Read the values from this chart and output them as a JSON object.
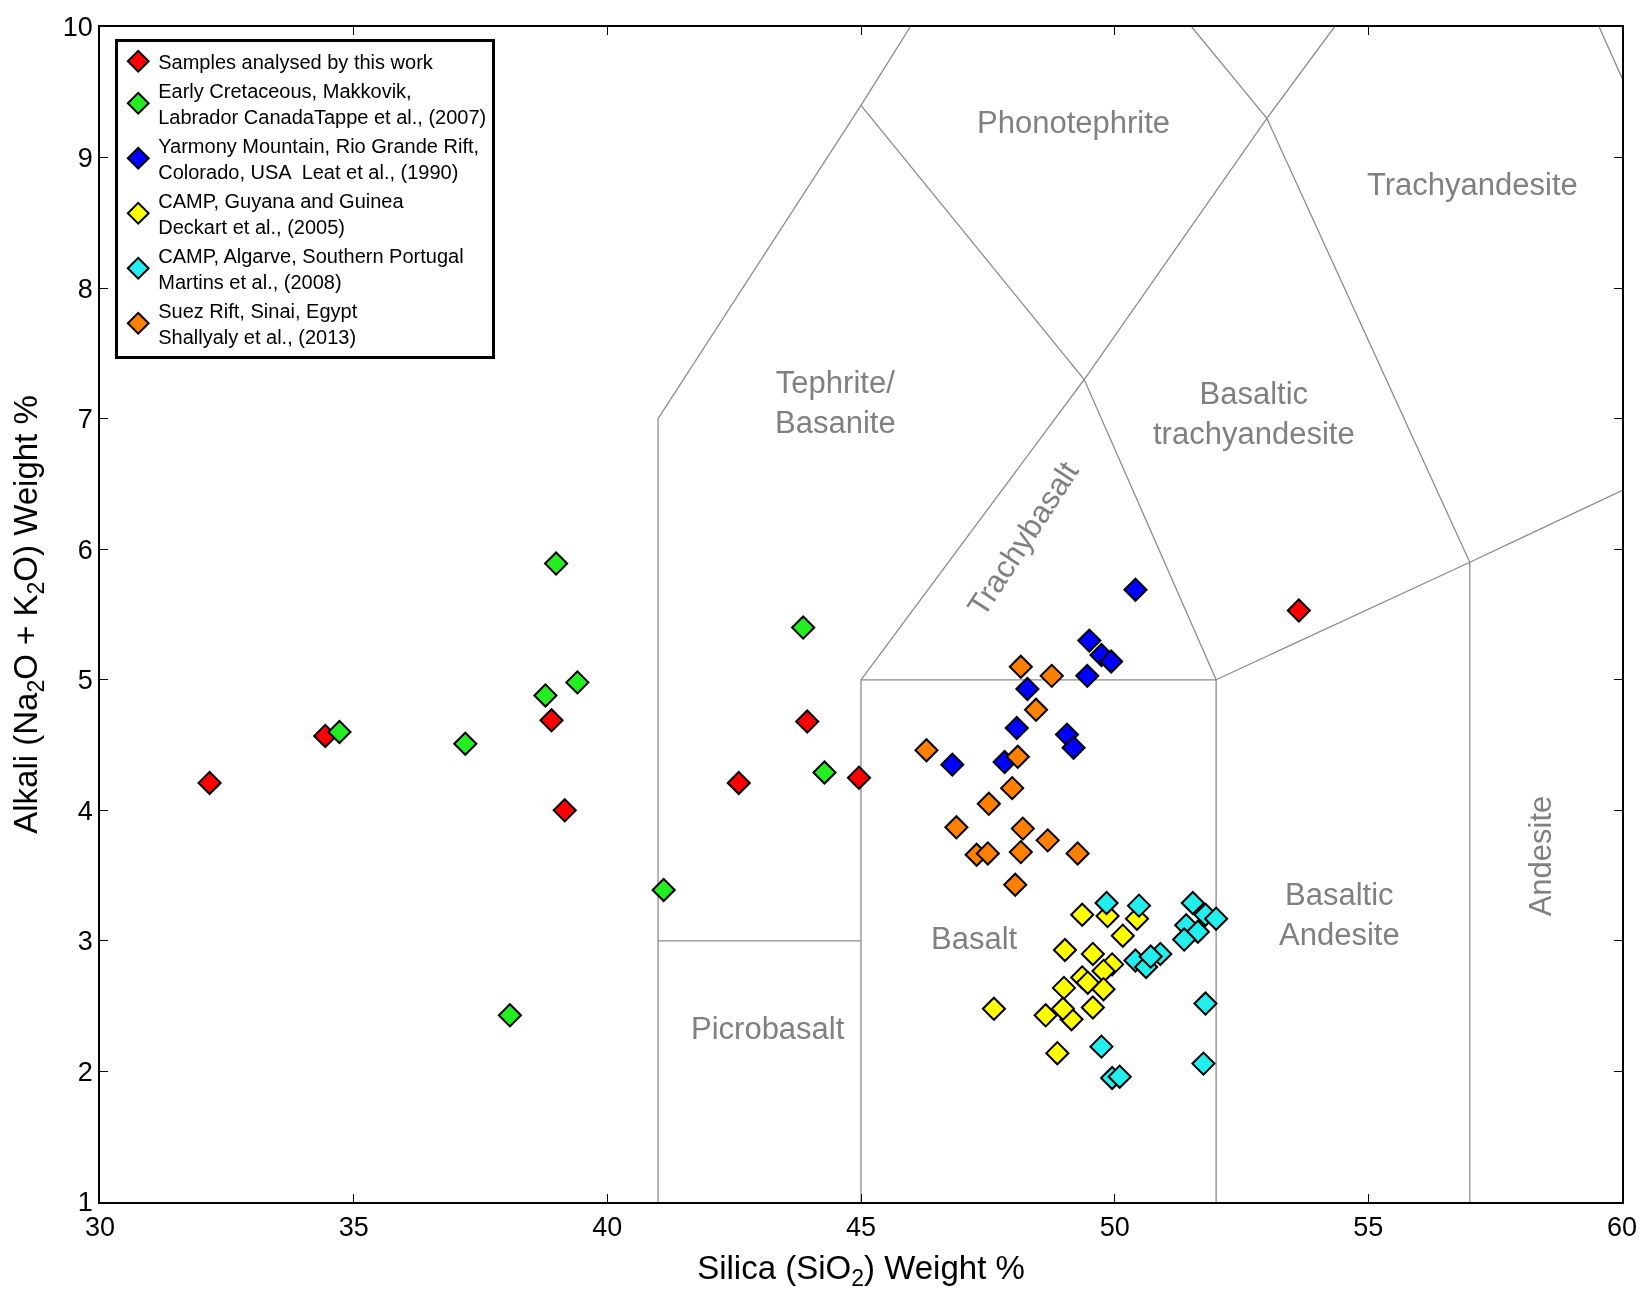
{
  "chart_data": {
    "type": "scatter",
    "xlabel": "Silica (SiO$_{2}$) Weight %",
    "ylabel": "Alkali (Na$_{2}$O + K$_{2}$O) Weight %",
    "xlim": [
      30,
      60
    ],
    "xticks": [
      30,
      35,
      40,
      45,
      50,
      55,
      60
    ],
    "ylim": [
      1,
      10
    ],
    "yticks": [
      1,
      2,
      3,
      4,
      5,
      6,
      7,
      8,
      9,
      10
    ],
    "legend": "top left",
    "marker": "diamond",
    "series": [
      {
        "type": "line",
        "color": "#8c8c8c",
        "marker": "none",
        "x": [
          41,
          41,
          45,
          45.97
        ],
        "values": [
          1,
          7,
          9.4,
          10
        ]
      },
      {
        "type": "line",
        "color": "#8c8c8c",
        "marker": "none",
        "x": [
          41,
          45
        ],
        "values": [
          3,
          3
        ]
      },
      {
        "type": "line",
        "color": "#8c8c8c",
        "marker": "none",
        "x": [
          45,
          45,
          52,
          52
        ],
        "values": [
          1,
          5,
          5,
          1
        ]
      },
      {
        "type": "line",
        "color": "#8c8c8c",
        "marker": "none",
        "x": [
          45,
          49.4,
          53,
          54.33
        ],
        "values": [
          5,
          7.3,
          9.3,
          10
        ]
      },
      {
        "type": "line",
        "color": "#8c8c8c",
        "marker": "none",
        "x": [
          45,
          49.4,
          52
        ],
        "values": [
          9.4,
          7.3,
          5
        ]
      },
      {
        "type": "line",
        "color": "#8c8c8c",
        "marker": "none",
        "x": [
          51.52,
          53,
          57,
          57
        ],
        "values": [
          10,
          9.3,
          5.9,
          1
        ]
      },
      {
        "type": "line",
        "color": "#8c8c8c",
        "marker": "none",
        "x": [
          52,
          57,
          60
        ],
        "values": [
          5,
          5.9,
          6.45
        ]
      },
      {
        "type": "line",
        "color": "#8c8c8c",
        "marker": "none",
        "x": [
          59.55,
          60
        ],
        "values": [
          10,
          9.61
        ]
      },
      {
        "name": "Samples analysed by this work",
        "color": "#ff0000",
        "x": [
          32.16,
          34.44,
          38.9,
          39.16,
          42.59,
          43.94,
          44.96,
          53.63
        ],
        "values": [
          4.21,
          4.57,
          4.69,
          4.0,
          4.21,
          4.68,
          4.25,
          5.53
        ]
      },
      {
        "name": "Early Cretaceous, Makkovik,\nLabrador CanadaTappe et al., (2007)",
        "color": "#22ee22",
        "x": [
          34.72,
          37.2,
          38.99,
          38.78,
          39.41,
          38.08,
          43.86,
          44.28,
          41.11
        ],
        "values": [
          4.6,
          4.51,
          5.89,
          4.88,
          4.98,
          2.43,
          5.4,
          4.29,
          3.39
        ]
      },
      {
        "name": "Yarmony Mountain, Rio Grande Rift,\nColorado, USA  Leat et al., (1990)",
        "color": "#0000ff",
        "x": [
          50.41,
          49.5,
          49.74,
          49.93,
          49.46,
          48.28,
          48.07,
          47.83,
          46.8,
          49.06,
          49.19
        ],
        "values": [
          5.69,
          5.3,
          5.19,
          5.14,
          5.03,
          4.93,
          4.63,
          4.37,
          4.35,
          4.58,
          4.48
        ]
      },
      {
        "name": "CAMP, Guyana and Guinea\nDeckart et al., (2005)",
        "color": "#ffff00",
        "x": [
          49.36,
          49.86,
          50.44,
          50.16,
          49.02,
          49.57,
          49.95,
          49.78,
          49.36,
          49.47,
          49.0,
          49.78,
          48.64,
          49.15,
          48.98,
          49.57,
          47.62,
          48.87
        ],
        "values": [
          3.2,
          3.19,
          3.17,
          3.04,
          2.93,
          2.9,
          2.82,
          2.77,
          2.72,
          2.68,
          2.64,
          2.63,
          2.43,
          2.4,
          2.48,
          2.49,
          2.48,
          2.14
        ]
      },
      {
        "name": "CAMP, Algarve, Southern Portugal\nMartins et al., (2008)",
        "color": "#22eeee",
        "x": [
          49.84,
          50.48,
          51.54,
          51.79,
          52.0,
          51.41,
          51.64,
          51.37,
          50.9,
          50.41,
          50.62,
          50.71,
          51.79,
          49.74,
          51.75,
          49.95,
          50.1
        ],
        "values": [
          3.29,
          3.27,
          3.29,
          3.2,
          3.17,
          3.12,
          3.07,
          3.01,
          2.9,
          2.85,
          2.8,
          2.88,
          2.52,
          2.19,
          2.06,
          1.95,
          1.96
        ]
      },
      {
        "name": "Suez Rift, Sinai, Egypt\nShallyaly et al., (2013)",
        "color": "#ff8000",
        "x": [
          48.15,
          48.76,
          48.45,
          46.29,
          48.09,
          47.98,
          47.52,
          46.88,
          48.19,
          48.68,
          47.28,
          47.5,
          48.15,
          49.27,
          48.04
        ],
        "values": [
          5.1,
          5.03,
          4.77,
          4.46,
          4.41,
          4.17,
          4.05,
          3.87,
          3.86,
          3.77,
          3.66,
          3.67,
          3.68,
          3.67,
          3.43
        ]
      }
    ],
    "annotations": [
      "Phonotephrite",
      "Trachyandesite",
      "Tephrite/\nBasanite",
      "Basaltic\ntrachyandesite",
      "Trachybasalt",
      "Basalt",
      "Picrobasalt",
      "Basaltic\nAndesite",
      "Andesite"
    ]
  }
}
